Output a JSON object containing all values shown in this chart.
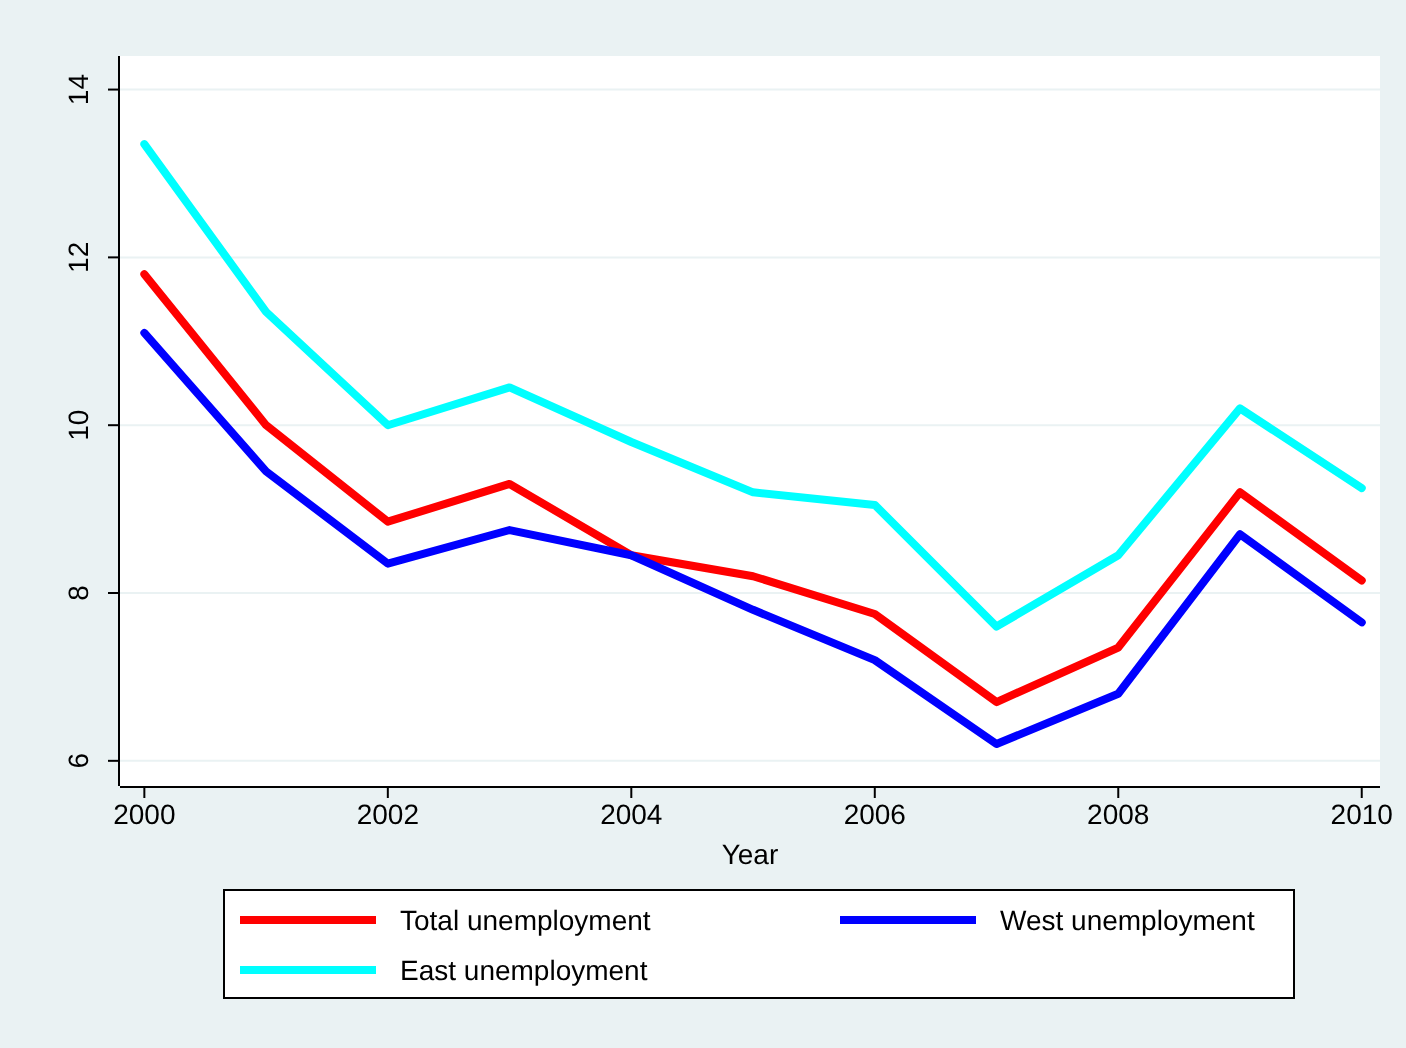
{
  "chart_data": {
    "type": "line",
    "xlabel": "Year",
    "x": [
      2000,
      2001,
      2002,
      2003,
      2004,
      2005,
      2006,
      2007,
      2008,
      2009,
      2010
    ],
    "xlim": [
      1999.8,
      2010.15
    ],
    "xticks": [
      2000,
      2002,
      2004,
      2006,
      2008,
      2010
    ],
    "ylim": [
      5.7,
      14.4
    ],
    "yticks": [
      6,
      8,
      10,
      12,
      14
    ],
    "grid": "y",
    "legend": "bottom",
    "series": [
      {
        "name": "Total unemployment",
        "color": "#ff0000",
        "values": [
          11.8,
          10.0,
          8.85,
          9.3,
          8.45,
          8.2,
          7.75,
          6.7,
          7.35,
          9.2,
          8.15
        ]
      },
      {
        "name": "West unemployment",
        "color": "#0000ff",
        "values": [
          11.1,
          9.45,
          8.35,
          8.75,
          8.45,
          7.8,
          7.2,
          6.2,
          6.8,
          8.7,
          7.65
        ]
      },
      {
        "name": "East unemployment",
        "color": "#00ffff",
        "values": [
          13.35,
          11.35,
          10.0,
          10.45,
          9.8,
          9.2,
          9.05,
          7.6,
          8.45,
          10.2,
          9.25
        ]
      }
    ]
  }
}
